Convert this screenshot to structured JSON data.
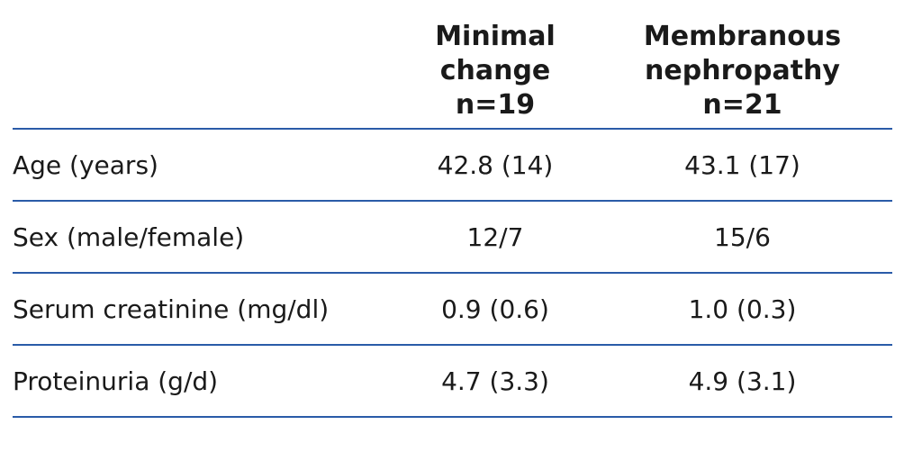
{
  "table": {
    "header": [
      "",
      "Minimal change n=19",
      "Membranous nephropathy n=21"
    ],
    "header_lines": [
      [],
      [
        "Minimal",
        "change",
        "n=19"
      ],
      [
        "Membranous",
        "nephropathy",
        "n=21"
      ]
    ],
    "rows": [
      [
        "Age (years)",
        "42.8 (14)",
        "43.1 (17)"
      ],
      [
        "Sex (male/female)",
        "12/7",
        "15/6"
      ],
      [
        "Serum creatinine (mg/dl)",
        "0.9 (0.6)",
        "1.0 (0.3)"
      ],
      [
        "Proteinuria (g/d)",
        "4.7 (3.3)",
        "4.9 (3.1)"
      ]
    ]
  }
}
